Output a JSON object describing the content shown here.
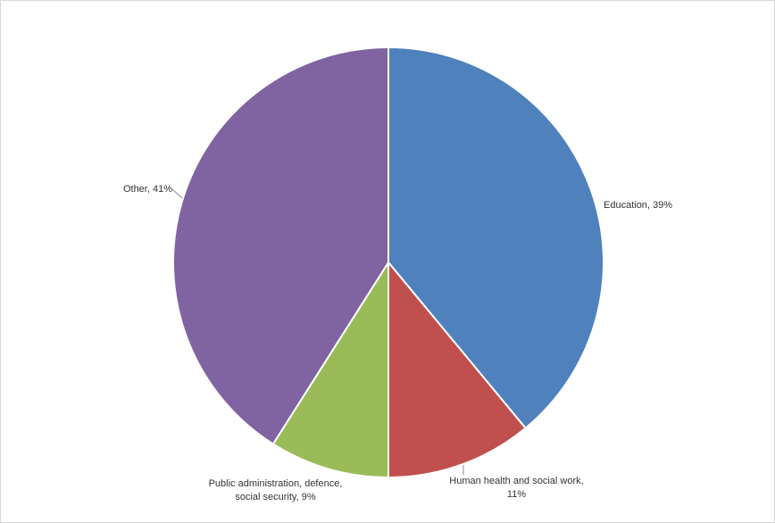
{
  "chart_data": {
    "type": "pie",
    "values": [
      39,
      11,
      9,
      41
    ],
    "value_labels": [
      "Education, 39%",
      "Human health and social work, 11%",
      "Public administration, defence, social security, 9%",
      "Other, 41%"
    ],
    "colors": [
      "#4f81bd",
      "#c0504d",
      "#9bbb59",
      "#8064a2"
    ]
  }
}
